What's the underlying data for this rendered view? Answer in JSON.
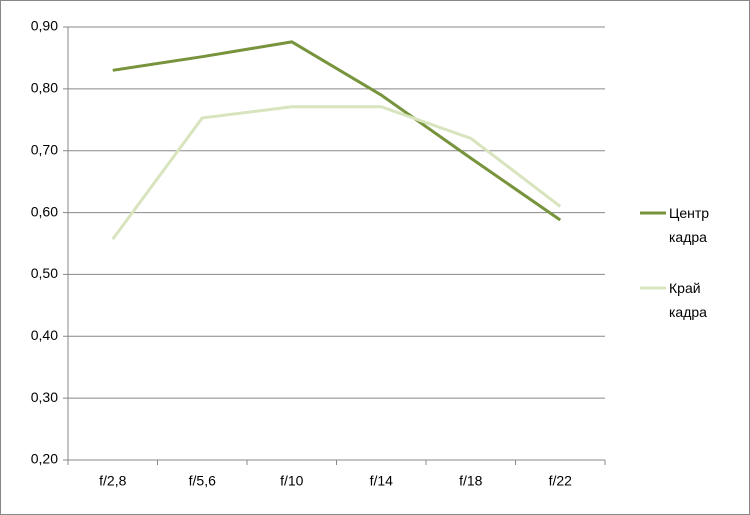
{
  "chart_data": {
    "type": "line",
    "categories": [
      "f/2,8",
      "f/5,6",
      "f/10",
      "f/14",
      "f/18",
      "f/22"
    ],
    "series": [
      {
        "name": "Центр кадра",
        "color": "#77933c",
        "values": [
          0.83,
          0.852,
          0.876,
          0.79,
          0.688,
          0.588
        ]
      },
      {
        "name": "Край кадра",
        "color": "#d7e4bd",
        "values": [
          0.557,
          0.753,
          0.771,
          0.771,
          0.72,
          0.61
        ]
      }
    ],
    "ylim": [
      0.2,
      0.9
    ],
    "yticks": [
      {
        "value": 0.2,
        "label": "0,20"
      },
      {
        "value": 0.3,
        "label": "0,30"
      },
      {
        "value": 0.4,
        "label": "0,40"
      },
      {
        "value": 0.5,
        "label": "0,50"
      },
      {
        "value": 0.6,
        "label": "0,60"
      },
      {
        "value": 0.7,
        "label": "0,70"
      },
      {
        "value": 0.8,
        "label": "0,80"
      },
      {
        "value": 0.9,
        "label": "0,90"
      }
    ],
    "grid": true,
    "legend": "right"
  }
}
